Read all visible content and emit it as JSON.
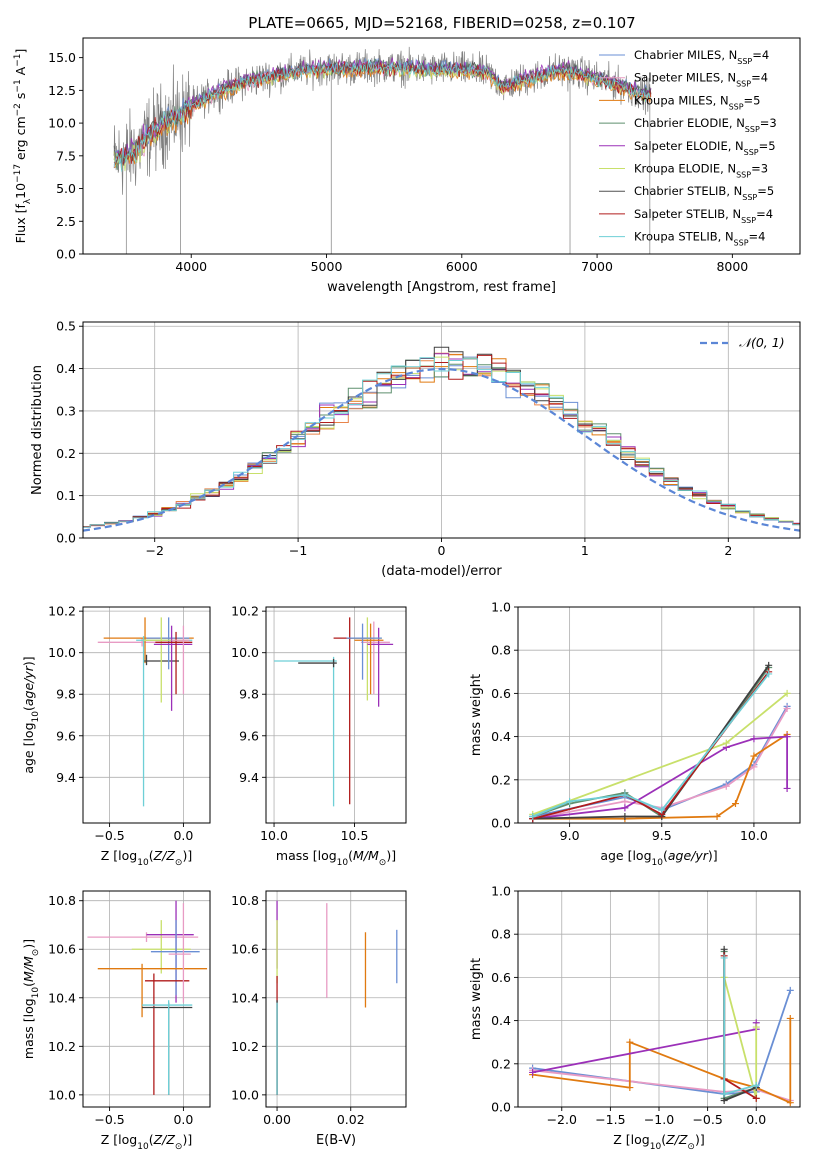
{
  "figure": {
    "title": "PLATE=0665, MJD=52168, FIBERID=0258, z=0.107"
  },
  "colors": {
    "series": [
      "#6a8fd4",
      "#e8844a",
      "#e07a10",
      "#5e8f6e",
      "#9b30b8",
      "#c8e06a",
      "#404040",
      "#b01c1c",
      "#6ecfd6"
    ],
    "lines": {
      "Chabrier MILES": "#6a8fd4",
      "Salpeter MILES": "#e89bc4",
      "Kroupa MILES": "#e07a10",
      "Chabrier ELODIE": "#5e8f6e",
      "Salpeter ELODIE": "#9b30b8",
      "Kroupa ELODIE": "#c8e06a",
      "Chabrier STELIB": "#505050",
      "Salpeter STELIB": "#b01c1c",
      "Kroupa STELIB": "#6ecfd6"
    },
    "normal_curve": "#5b86d6",
    "grid": "#b0b0b0"
  },
  "chart_data": [
    {
      "id": "spectrum",
      "type": "line",
      "title": "PLATE=0665, MJD=52168, FIBERID=0258, z=0.107",
      "xlabel": "wavelength [Angstrom, rest frame]",
      "ylabel_parts": [
        "Flux [f",
        "λ",
        "10",
        "−17",
        " erg cm",
        "−2",
        " s",
        "−1",
        " A",
        "−1",
        "]"
      ],
      "xlim": [
        3200,
        8500
      ],
      "ylim": [
        0,
        16.5
      ],
      "xticks": [
        4000,
        5000,
        6000,
        7000,
        8000
      ],
      "xtick_labels": [
        "4000",
        "5000",
        "6000",
        "7000",
        "8000"
      ],
      "yticks": [
        0,
        2.5,
        5,
        7.5,
        10,
        12.5,
        15
      ],
      "ytick_labels": [
        "0.0",
        "2.5",
        "5.0",
        "7.5",
        "10.0",
        "12.5",
        "15.0"
      ],
      "grid": false,
      "legend_position": "right",
      "data_flux_envelope": {
        "x": [
          3430,
          3500,
          3600,
          3700,
          3800,
          3900,
          4000,
          4200,
          4400,
          4600,
          4800,
          5000,
          5200,
          5400,
          5600,
          5800,
          6000,
          6200,
          6300,
          6500,
          6700,
          6800,
          7000,
          7200,
          7300,
          7400
        ],
        "y": [
          7.2,
          7.4,
          8.0,
          9.2,
          10.0,
          10.5,
          11.3,
          12.4,
          13.2,
          13.6,
          14.0,
          14.2,
          14.2,
          14.3,
          14.2,
          14.1,
          14.1,
          13.8,
          12.8,
          13.4,
          14.0,
          14.0,
          13.4,
          12.8,
          12.3,
          12.2
        ]
      },
      "legend": [
        {
          "label": "Chabrier MILES",
          "nssp": "4"
        },
        {
          "label": "Salpeter MILES",
          "nssp": "4"
        },
        {
          "label": "Kroupa MILES",
          "nssp": "5"
        },
        {
          "label": "Chabrier ELODIE",
          "nssp": "3"
        },
        {
          "label": "Salpeter ELODIE",
          "nssp": "5"
        },
        {
          "label": "Kroupa ELODIE",
          "nssp": "3"
        },
        {
          "label": "Chabrier STELIB",
          "nssp": "5"
        },
        {
          "label": "Salpeter STELIB",
          "nssp": "4"
        },
        {
          "label": "Kroupa STELIB",
          "nssp": "4"
        }
      ],
      "legend_nssp_prefix": "N",
      "legend_nssp_sub": "SSP"
    },
    {
      "id": "residuals",
      "type": "bar",
      "xlabel": "(data-model)/error",
      "ylabel": "Normed distribution",
      "xlim": [
        -2.5,
        2.5
      ],
      "ylim": [
        0,
        0.51
      ],
      "xticks": [
        -2,
        -1,
        0,
        1,
        2
      ],
      "xtick_labels": [
        "−2",
        "−1",
        "0",
        "1",
        "2"
      ],
      "yticks": [
        0,
        0.1,
        0.2,
        0.3,
        0.4,
        0.5
      ],
      "ytick_labels": [
        "0.0",
        "0.1",
        "0.2",
        "0.3",
        "0.4",
        "0.5"
      ],
      "grid": true,
      "legend_position": "top-right",
      "legend_label": "𝒩(0, 1)",
      "bin_width": 0.1
    },
    {
      "id": "age_vs_Z",
      "type": "scatter",
      "xlabel": "Z [log10(Z/Z⊙)]",
      "ylabel": "age [log10(age/yr)]",
      "xlim": [
        -0.68,
        0.18
      ],
      "ylim": [
        9.18,
        10.22
      ],
      "xticks": [
        -0.5,
        0.0
      ],
      "xtick_labels": [
        "−0.5",
        "0.0"
      ],
      "yticks": [
        9.4,
        9.6,
        9.8,
        10.0,
        10.2
      ],
      "ytick_labels": [
        "9.4",
        "9.6",
        "9.8",
        "10.0",
        "10.2"
      ],
      "grid": true,
      "errorbars": [
        {
          "x": -0.28,
          "xerr": [
            0.3,
            0.3
          ],
          "y": 10.05,
          "yerr": [
            0.02,
            0.02
          ],
          "color": "#e89bc4"
        },
        {
          "x": -0.26,
          "xerr": [
            0.28,
            0.33
          ],
          "y": 10.07,
          "yerr": [
            0.12,
            0.1
          ],
          "color": "#e07a10"
        },
        {
          "x": -0.25,
          "xerr": [
            0.02,
            0.22
          ],
          "y": 9.96,
          "yerr": [
            0.02,
            0.03
          ],
          "color": "#404040"
        },
        {
          "x": -0.27,
          "xerr": [
            0.05,
            0.33
          ],
          "y": 10.06,
          "yerr": [
            0.8,
            0.02
          ],
          "color": "#6ecfd6"
        },
        {
          "x": -0.1,
          "xerr": [
            0.15,
            0.14
          ],
          "y": 10.07,
          "yerr": [
            0.15,
            0.1
          ],
          "color": "#6a8fd4"
        },
        {
          "x": -0.15,
          "xerr": [
            0.12,
            0.18
          ],
          "y": 10.06,
          "yerr": [
            0.3,
            0.11
          ],
          "color": "#c8e06a"
        },
        {
          "x": -0.08,
          "xerr": [
            0.12,
            0.14
          ],
          "y": 10.04,
          "yerr": [
            0.32,
            0.09
          ],
          "color": "#9b30b8"
        },
        {
          "x": -0.05,
          "xerr": [
            0.14,
            0.11
          ],
          "y": 10.05,
          "yerr": [
            0.25,
            0.05
          ],
          "color": "#b01c1c"
        },
        {
          "x": 0.0,
          "xerr": [
            0.08,
            0.04
          ],
          "y": 10.06,
          "yerr": [
            0.26,
            0.07
          ],
          "color": "#e89bc4"
        }
      ]
    },
    {
      "id": "age_vs_mass",
      "type": "scatter",
      "xlabel": "mass [log10(M/M⊙)]",
      "ylabel": "",
      "xlim": [
        9.95,
        10.82
      ],
      "ylim": [
        9.18,
        10.22
      ],
      "xticks": [
        10.0,
        10.5
      ],
      "xtick_labels": [
        "10.0",
        "10.5"
      ],
      "yticks": [
        9.4,
        9.6,
        9.8,
        10.0,
        10.2
      ],
      "ytick_labels": [
        "9.4",
        "9.6",
        "9.8",
        "10.0",
        "10.2"
      ],
      "grid": true,
      "errorbars": [
        {
          "x": 10.37,
          "xerr": [
            0.37,
            0.02
          ],
          "y": 9.96,
          "yerr": [
            0.7,
            0.02
          ],
          "color": "#6ecfd6"
        },
        {
          "x": 10.37,
          "xerr": [
            0.22,
            0.02
          ],
          "y": 9.95,
          "yerr": [
            0.02,
            0.02
          ],
          "color": "#404040"
        },
        {
          "x": 10.47,
          "xerr": [
            0.1,
            0.15
          ],
          "y": 10.07,
          "yerr": [
            0.8,
            0.1
          ],
          "color": "#b01c1c"
        },
        {
          "x": 10.58,
          "xerr": [
            0.1,
            0.09
          ],
          "y": 10.07,
          "yerr": [
            0.3,
            0.1
          ],
          "color": "#c8e06a"
        },
        {
          "x": 10.62,
          "xerr": [
            0.08,
            0.1
          ],
          "y": 10.05,
          "yerr": [
            0.25,
            0.1
          ],
          "color": "#e89bc4"
        },
        {
          "x": 10.65,
          "xerr": [
            0.07,
            0.09
          ],
          "y": 10.04,
          "yerr": [
            0.3,
            0.08
          ],
          "color": "#9b30b8"
        },
        {
          "x": 10.6,
          "xerr": [
            0.1,
            0.08
          ],
          "y": 10.06,
          "yerr": [
            0.26,
            0.08
          ],
          "color": "#e07a10"
        },
        {
          "x": 10.55,
          "xerr": [
            0.1,
            0.12
          ],
          "y": 10.07,
          "yerr": [
            0.2,
            0.07
          ],
          "color": "#6a8fd4"
        }
      ]
    },
    {
      "id": "mass_weight_vs_age",
      "type": "line",
      "xlabel": "age [log10(age/yr)]",
      "ylabel": "mass weight",
      "xlim": [
        8.72,
        10.25
      ],
      "ylim": [
        0,
        1
      ],
      "xticks": [
        9.0,
        9.5,
        10.0
      ],
      "xtick_labels": [
        "9.0",
        "9.5",
        "10.0"
      ],
      "yticks": [
        0,
        0.2,
        0.4,
        0.6,
        0.8,
        1.0
      ],
      "ytick_labels": [
        "0.0",
        "0.2",
        "0.4",
        "0.6",
        "0.8",
        "1.0"
      ],
      "grid": true,
      "series": [
        {
          "color": "#6a8fd4",
          "x": [
            8.8,
            9.3,
            9.5,
            9.85,
            10.0,
            10.18
          ],
          "y": [
            0.03,
            0.12,
            0.06,
            0.18,
            0.27,
            0.54
          ]
        },
        {
          "color": "#e89bc4",
          "x": [
            8.8,
            9.3,
            9.5,
            9.85,
            10.0,
            10.18
          ],
          "y": [
            0.02,
            0.1,
            0.07,
            0.17,
            0.26,
            0.53
          ]
        },
        {
          "color": "#e07a10",
          "x": [
            8.8,
            9.3,
            9.8,
            9.9,
            10.0,
            10.18
          ],
          "y": [
            0.02,
            0.02,
            0.03,
            0.09,
            0.31,
            0.41
          ]
        },
        {
          "color": "#5e8f6e",
          "x": [
            8.8,
            9.0,
            9.3,
            9.5,
            10.08
          ],
          "y": [
            0.03,
            0.09,
            0.14,
            0.03,
            0.72
          ]
        },
        {
          "color": "#9b30b8",
          "x": [
            8.8,
            9.3,
            9.85,
            10.0,
            10.18,
            10.18
          ],
          "y": [
            0.02,
            0.07,
            0.35,
            0.39,
            0.4,
            0.16
          ]
        },
        {
          "color": "#c8e06a",
          "x": [
            8.8,
            9.85,
            10.18
          ],
          "y": [
            0.04,
            0.37,
            0.6
          ]
        },
        {
          "color": "#404040",
          "x": [
            8.8,
            9.3,
            9.5,
            10.08
          ],
          "y": [
            0.02,
            0.03,
            0.03,
            0.73
          ]
        },
        {
          "color": "#b01c1c",
          "x": [
            8.8,
            9.3,
            9.5,
            10.08
          ],
          "y": [
            0.02,
            0.13,
            0.04,
            0.7
          ]
        },
        {
          "color": "#6ecfd6",
          "x": [
            8.8,
            9.0,
            9.3,
            9.5,
            10.08
          ],
          "y": [
            0.03,
            0.1,
            0.13,
            0.06,
            0.69
          ]
        }
      ]
    },
    {
      "id": "mass_vs_Z",
      "type": "scatter",
      "xlabel": "Z [log10(Z/Z⊙)]",
      "ylabel": "mass [log10(M/M⊙)]",
      "xlim": [
        -0.68,
        0.18
      ],
      "ylim": [
        9.95,
        10.84
      ],
      "xticks": [
        -0.5,
        0.0
      ],
      "xtick_labels": [
        "−0.5",
        "0.0"
      ],
      "yticks": [
        10.0,
        10.2,
        10.4,
        10.6,
        10.8
      ],
      "ytick_labels": [
        "10.0",
        "10.2",
        "10.4",
        "10.6",
        "10.8"
      ],
      "grid": true,
      "errorbars": [
        {
          "x": -0.25,
          "xerr": [
            0.4,
            0.35
          ],
          "y": 10.65,
          "yerr": [
            0.02,
            0.02
          ],
          "color": "#e89bc4"
        },
        {
          "x": -0.15,
          "xerr": [
            0.2,
            0.2
          ],
          "y": 10.6,
          "yerr": [
            0.1,
            0.12
          ],
          "color": "#c8e06a"
        },
        {
          "x": -0.05,
          "xerr": [
            0.2,
            0.12
          ],
          "y": 10.66,
          "yerr": [
            0.28,
            0.14
          ],
          "color": "#9b30b8"
        },
        {
          "x": -0.05,
          "xerr": [
            0.17,
            0.16
          ],
          "y": 10.59,
          "yerr": [
            0.18,
            0.13
          ],
          "color": "#6a8fd4"
        },
        {
          "x": -0.28,
          "xerr": [
            0.3,
            0.44
          ],
          "y": 10.52,
          "yerr": [
            0.2,
            0.02
          ],
          "color": "#e07a10"
        },
        {
          "x": -0.2,
          "xerr": [
            0.06,
            0.24
          ],
          "y": 10.47,
          "yerr": [
            0.47,
            0.03
          ],
          "color": "#b01c1c"
        },
        {
          "x": -0.1,
          "xerr": [
            0.18,
            0.16
          ],
          "y": 10.36,
          "yerr": [
            0.36,
            0.02
          ],
          "color": "#404040"
        },
        {
          "x": -0.1,
          "xerr": [
            0.18,
            0.16
          ],
          "y": 10.37,
          "yerr": [
            0.37,
            0.02
          ],
          "color": "#6ecfd6"
        },
        {
          "x": 0.0,
          "xerr": [
            0.1,
            0.05
          ],
          "y": 10.58,
          "yerr": [
            0.2,
            0.21
          ],
          "color": "#e89bc4"
        }
      ]
    },
    {
      "id": "mass_vs_EBV",
      "type": "scatter",
      "xlabel": "E(B-V)",
      "ylabel": "",
      "xlim": [
        -0.003,
        0.035
      ],
      "ylim": [
        9.95,
        10.84
      ],
      "xticks": [
        0.0,
        0.02
      ],
      "xtick_labels": [
        "0.00",
        "0.02"
      ],
      "yticks": [
        10.0,
        10.2,
        10.4,
        10.6,
        10.8
      ],
      "ytick_labels": [
        "10.0",
        "10.2",
        "10.4",
        "10.6",
        "10.8"
      ],
      "grid": true,
      "errorbars": [
        {
          "x": 0.0,
          "y": 10.66,
          "yerr": [
            0.14,
            0.14
          ],
          "color": "#9b30b8"
        },
        {
          "x": 0.0,
          "y": 10.59,
          "yerr": [
            0.13,
            0.13
          ],
          "color": "#c8e06a"
        },
        {
          "x": 0.0,
          "y": 10.47,
          "yerr": [
            0.47,
            0.02
          ],
          "color": "#b01c1c"
        },
        {
          "x": 0.0,
          "y": 10.37,
          "yerr": [
            0.37,
            0.02
          ],
          "color": "#404040"
        },
        {
          "x": 0.0,
          "y": 10.36,
          "yerr": [
            0.36,
            0.02
          ],
          "color": "#6ecfd6"
        },
        {
          "x": 0.0135,
          "y": 10.6,
          "yerr": [
            0.2,
            0.19
          ],
          "color": "#e89bc4"
        },
        {
          "x": 0.024,
          "y": 10.52,
          "yerr": [
            0.16,
            0.15
          ],
          "color": "#e07a10"
        },
        {
          "x": 0.0325,
          "y": 10.57,
          "yerr": [
            0.11,
            0.11
          ],
          "color": "#6a8fd4"
        }
      ]
    },
    {
      "id": "mass_weight_vs_Z",
      "type": "line",
      "xlabel": "Z [log10(Z/Z⊙)]",
      "ylabel": "mass weight",
      "xlim": [
        -2.45,
        0.45
      ],
      "ylim": [
        0,
        1
      ],
      "xticks": [
        -2.0,
        -1.5,
        -1.0,
        -0.5,
        0.0
      ],
      "xtick_labels": [
        "−2.0",
        "−1.5",
        "−1.0",
        "−0.5",
        "0.0"
      ],
      "yticks": [
        0,
        0.2,
        0.4,
        0.6,
        0.8,
        1.0
      ],
      "ytick_labels": [
        "0.0",
        "0.2",
        "0.4",
        "0.6",
        "0.8",
        "1.0"
      ],
      "grid": true,
      "series": [
        {
          "color": "#6a8fd4",
          "x": [
            -2.3,
            -0.33,
            0.0,
            0.35
          ],
          "y": [
            0.18,
            0.06,
            0.07,
            0.54
          ]
        },
        {
          "color": "#e89bc4",
          "x": [
            -2.3,
            -0.33,
            0.0,
            0.35
          ],
          "y": [
            0.17,
            0.07,
            0.08,
            0.03
          ]
        },
        {
          "color": "#e07a10",
          "x": [
            -2.3,
            -1.3,
            -1.3,
            -0.33,
            0.0,
            0.35,
            0.35
          ],
          "y": [
            0.15,
            0.09,
            0.3,
            0.13,
            0.09,
            0.02,
            0.41
          ]
        },
        {
          "color": "#5e8f6e",
          "x": [
            -0.33,
            -0.33,
            0.0
          ],
          "y": [
            0.72,
            0.04,
            0.09
          ]
        },
        {
          "color": "#9b30b8",
          "x": [
            -2.3,
            0.0,
            0.0
          ],
          "y": [
            0.16,
            0.36,
            0.39
          ]
        },
        {
          "color": "#c8e06a",
          "x": [
            -0.33,
            0.0,
            0.0
          ],
          "y": [
            0.6,
            0.04,
            0.37
          ]
        },
        {
          "color": "#404040",
          "x": [
            -0.33,
            -0.33,
            0.0
          ],
          "y": [
            0.73,
            0.03,
            0.09
          ]
        },
        {
          "color": "#b01c1c",
          "x": [
            -0.33,
            -0.33,
            0.0
          ],
          "y": [
            0.7,
            0.13,
            0.04
          ]
        },
        {
          "color": "#6ecfd6",
          "x": [
            -0.33,
            -0.33,
            0.0
          ],
          "y": [
            0.69,
            0.06,
            0.1
          ]
        }
      ]
    }
  ]
}
